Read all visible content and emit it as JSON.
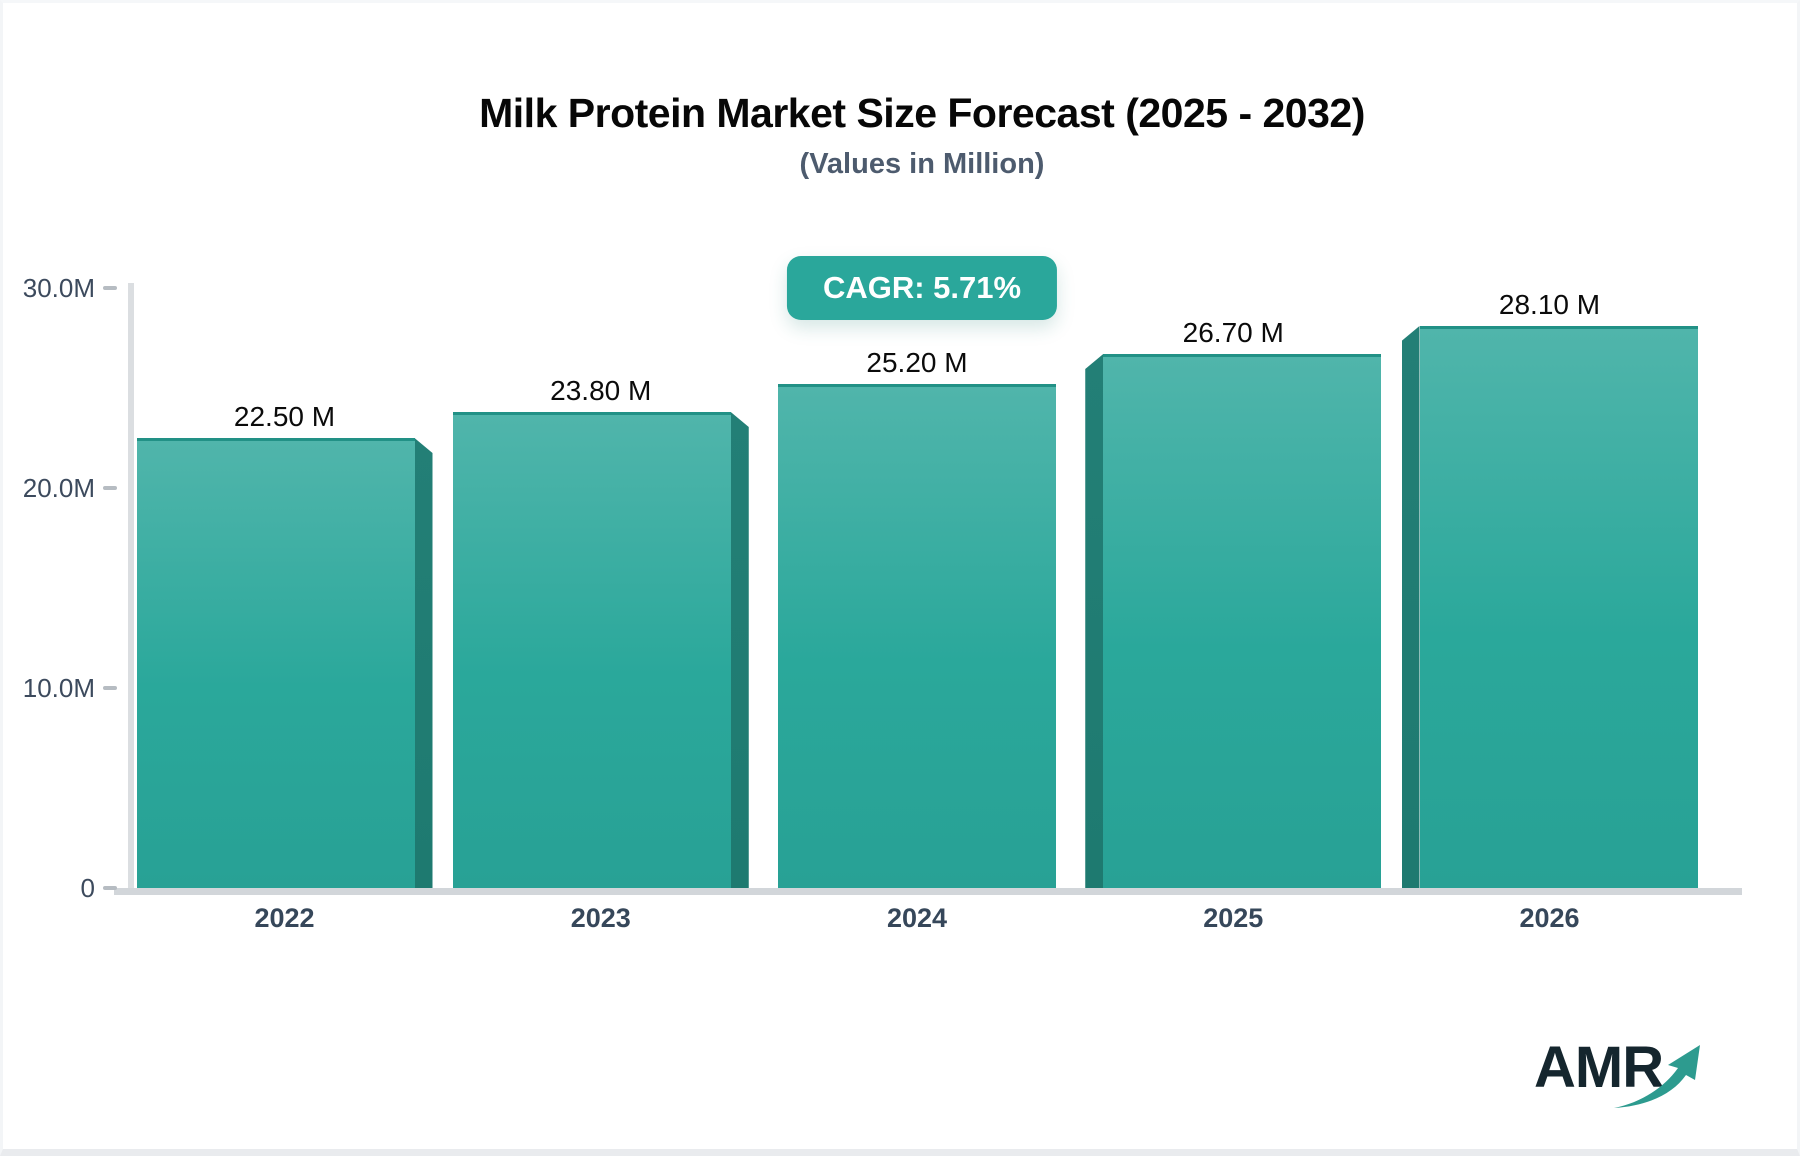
{
  "header": {
    "title": "Milk Protein Market Size Forecast (2025 - 2032)",
    "subtitle": "(Values in Million)"
  },
  "badge": {
    "label": "CAGR: 5.71%"
  },
  "logo": {
    "text": "AMR"
  },
  "chart_data": {
    "type": "bar",
    "title": "Milk Protein Market Size Forecast (2025 - 2032)",
    "subtitle": "(Values in Million)",
    "unit": "Million",
    "categories": [
      "2022",
      "2023",
      "2024",
      "2025",
      "2026"
    ],
    "values": [
      22.5,
      23.8,
      25.2,
      26.7,
      28.1
    ],
    "bar_labels": [
      "22.50 M",
      "23.80 M",
      "25.20 M",
      "26.70 M",
      "28.10 M"
    ],
    "annotation": "CAGR: 5.71%",
    "y_axis": {
      "min": 0,
      "max": 30,
      "ticks": [
        {
          "label": "30.0M",
          "value": 30
        },
        {
          "label": "20.0M",
          "value": 20
        },
        {
          "label": "10.0M",
          "value": 10
        },
        {
          "label": "0",
          "value": 0
        }
      ]
    },
    "grid": "off",
    "legend": "none",
    "bar_3d_side": [
      "right",
      "right",
      "none",
      "left",
      "left"
    ],
    "colors": {
      "bar_top": "#50b5ab",
      "bar_mid": "#2aa89b",
      "bar_bottom": "#28a195",
      "bar_side": "#1f7d73",
      "badge_bg": "#2aa79b",
      "axis_line": "#dbdee1",
      "tick_text": "#3c4a5d",
      "value_text": "#0b0b0b",
      "logo_arrow": "#2d9b8f"
    }
  }
}
